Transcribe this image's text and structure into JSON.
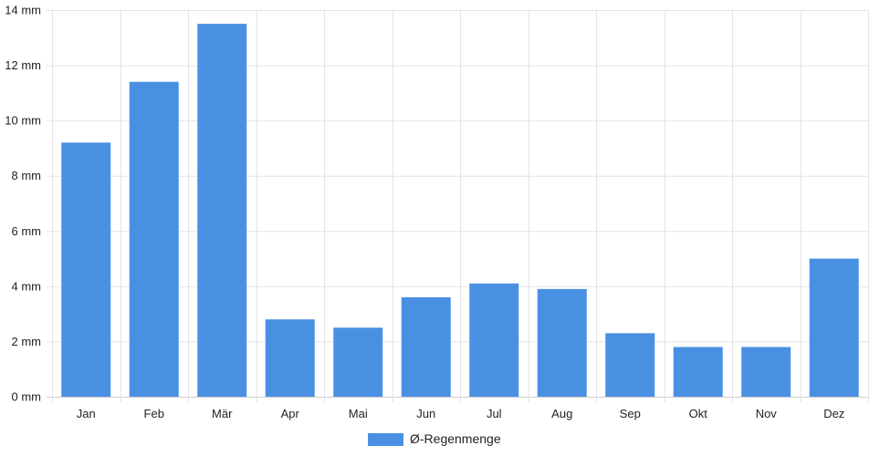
{
  "chart_data": {
    "type": "bar",
    "categories": [
      "Jan",
      "Feb",
      "Mär",
      "Apr",
      "Mai",
      "Jun",
      "Jul",
      "Aug",
      "Sep",
      "Okt",
      "Nov",
      "Dez"
    ],
    "series": [
      {
        "name": "Ø-Regenmenge",
        "values": [
          9.2,
          11.4,
          13.5,
          2.8,
          2.5,
          3.6,
          4.1,
          3.9,
          2.3,
          1.8,
          1.8,
          5.0
        ],
        "color": "#4a90e2"
      }
    ],
    "ylim": [
      0,
      14
    ],
    "yticks": [
      0,
      2,
      4,
      6,
      8,
      10,
      12,
      14
    ],
    "y_unit": "mm",
    "grid": true,
    "legend_position": "bottom-center"
  }
}
